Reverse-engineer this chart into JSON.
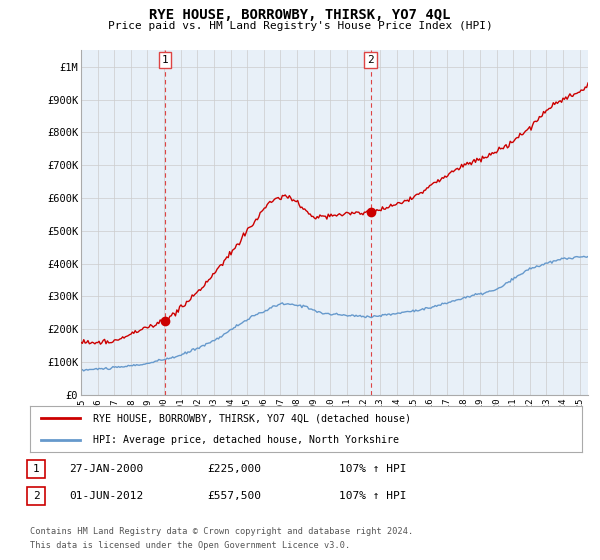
{
  "title": "RYE HOUSE, BORROWBY, THIRSK, YO7 4QL",
  "subtitle": "Price paid vs. HM Land Registry's House Price Index (HPI)",
  "ylabel_ticks": [
    "£0",
    "£100K",
    "£200K",
    "£300K",
    "£400K",
    "£500K",
    "£600K",
    "£700K",
    "£800K",
    "£900K",
    "£1M"
  ],
  "ytick_values": [
    0,
    100000,
    200000,
    300000,
    400000,
    500000,
    600000,
    700000,
    800000,
    900000,
    1000000
  ],
  "ylim": [
    0,
    1050000
  ],
  "xlim_start": 1995.0,
  "xlim_end": 2025.5,
  "marker1_x": 2000.07,
  "marker1_y": 225000,
  "marker2_x": 2012.42,
  "marker2_y": 557500,
  "marker1_label": "1",
  "marker2_label": "2",
  "legend_house_label": "RYE HOUSE, BORROWBY, THIRSK, YO7 4QL (detached house)",
  "legend_hpi_label": "HPI: Average price, detached house, North Yorkshire",
  "table_row1": [
    "1",
    "27-JAN-2000",
    "£225,000",
    "107% ↑ HPI"
  ],
  "table_row2": [
    "2",
    "01-JUN-2012",
    "£557,500",
    "107% ↑ HPI"
  ],
  "footnote1": "Contains HM Land Registry data © Crown copyright and database right 2024.",
  "footnote2": "This data is licensed under the Open Government Licence v3.0.",
  "line_house_color": "#cc0000",
  "line_hpi_color": "#6699cc",
  "marker_color": "#cc0000",
  "vline_color": "#dd4444",
  "chart_bg_color": "#e8f0f8",
  "background_color": "#ffffff",
  "grid_color": "#cccccc"
}
